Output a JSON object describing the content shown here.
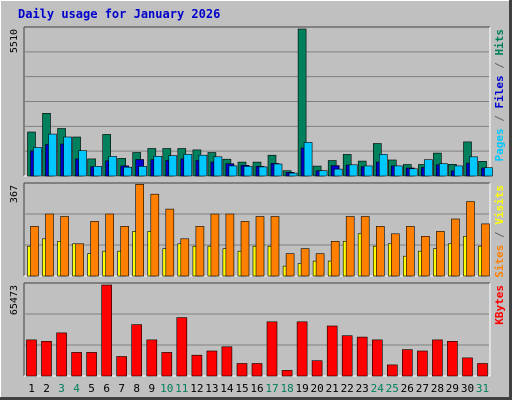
{
  "chart_data": {
    "type": "bar",
    "title": "Daily usage for January 2026",
    "categories": [
      "1",
      "2",
      "3",
      "4",
      "5",
      "6",
      "7",
      "8",
      "9",
      "10",
      "11",
      "12",
      "13",
      "14",
      "15",
      "16",
      "17",
      "18",
      "19",
      "20",
      "21",
      "22",
      "23",
      "24",
      "25",
      "26",
      "27",
      "28",
      "29",
      "30",
      "31"
    ],
    "weekend_days": [
      "3",
      "4",
      "10",
      "11",
      "17",
      "18",
      "24",
      "25",
      "31"
    ],
    "panels": [
      {
        "id": "hits",
        "max_label": "5510",
        "ymax": 5510,
        "right_label_parts": [
          {
            "text": "Pages",
            "color": "#00c8ff"
          },
          {
            "text": " / ",
            "color": "#666666"
          },
          {
            "text": "Files",
            "color": "#0000cc"
          },
          {
            "text": " / ",
            "color": "#666666"
          },
          {
            "text": "Hits",
            "color": "#00805c"
          }
        ],
        "series": [
          {
            "name": "Hits",
            "color": "#00805c",
            "values": [
              1650,
              2350,
              1780,
              1460,
              640,
              1560,
              660,
              880,
              1030,
              1030,
              1030,
              980,
              880,
              630,
              520,
              520,
              780,
              200,
              5510,
              370,
              580,
              810,
              560,
              1220,
              600,
              430,
              430,
              860,
              440,
              1280,
              550
            ]
          },
          {
            "name": "Files",
            "color": "#0000cc",
            "values": [
              940,
              1180,
              1200,
              640,
              350,
              570,
              380,
              620,
              610,
              580,
              640,
              580,
              520,
              460,
              400,
              360,
              470,
              140,
              1050,
              200,
              390,
              410,
              350,
              520,
              380,
              300,
              320,
              420,
              190,
              480,
              300
            ]
          },
          {
            "name": "Pages",
            "color": "#00c8ff",
            "values": [
              1070,
              1570,
              1460,
              950,
              360,
              730,
              330,
              360,
              740,
              760,
              810,
              780,
              720,
              380,
              360,
              340,
              450,
              110,
              1260,
              200,
              260,
              420,
              380,
              810,
              380,
              270,
              610,
              460,
              380,
              720,
              310
            ]
          }
        ]
      },
      {
        "id": "visits",
        "max_label": "367",
        "ymax": 367,
        "right_label_parts": [
          {
            "text": "Sites",
            "color": "#ff8000"
          },
          {
            "text": " / ",
            "color": "#666666"
          },
          {
            "text": "Visits",
            "color": "#ffff00"
          }
        ],
        "series": [
          {
            "name": "Visits",
            "color": "#ffff00",
            "values": [
              120,
              150,
              140,
              130,
              90,
              100,
              100,
              180,
              180,
              110,
              130,
              120,
              120,
              110,
              100,
              120,
              120,
              40,
              50,
              60,
              60,
              140,
              170,
              120,
              130,
              80,
              100,
              110,
              130,
              160,
              120
            ]
          },
          {
            "name": "Sites",
            "color": "#ff8000",
            "values": [
              200,
              250,
              240,
              130,
              220,
              250,
              200,
              370,
              330,
              270,
              150,
              200,
              250,
              250,
              220,
              240,
              240,
              90,
              110,
              90,
              140,
              240,
              240,
              200,
              170,
              200,
              160,
              180,
              230,
              300,
              210
            ]
          }
        ]
      },
      {
        "id": "kbytes",
        "max_label": "65473",
        "ymax": 65473,
        "right_label_parts": [
          {
            "text": "KBytes",
            "color": "#ff0000"
          }
        ],
        "series": [
          {
            "name": "KBytes",
            "color": "#ff0000",
            "values": [
              26000,
              25000,
              31000,
              17000,
              17000,
              65473,
              14000,
              37000,
              26000,
              17000,
              42000,
              15000,
              18000,
              21000,
              9000,
              9000,
              39000,
              4000,
              39000,
              11000,
              36000,
              29000,
              28000,
              26000,
              8000,
              19000,
              18000,
              26000,
              25000,
              13000,
              9000
            ]
          }
        ]
      }
    ]
  }
}
